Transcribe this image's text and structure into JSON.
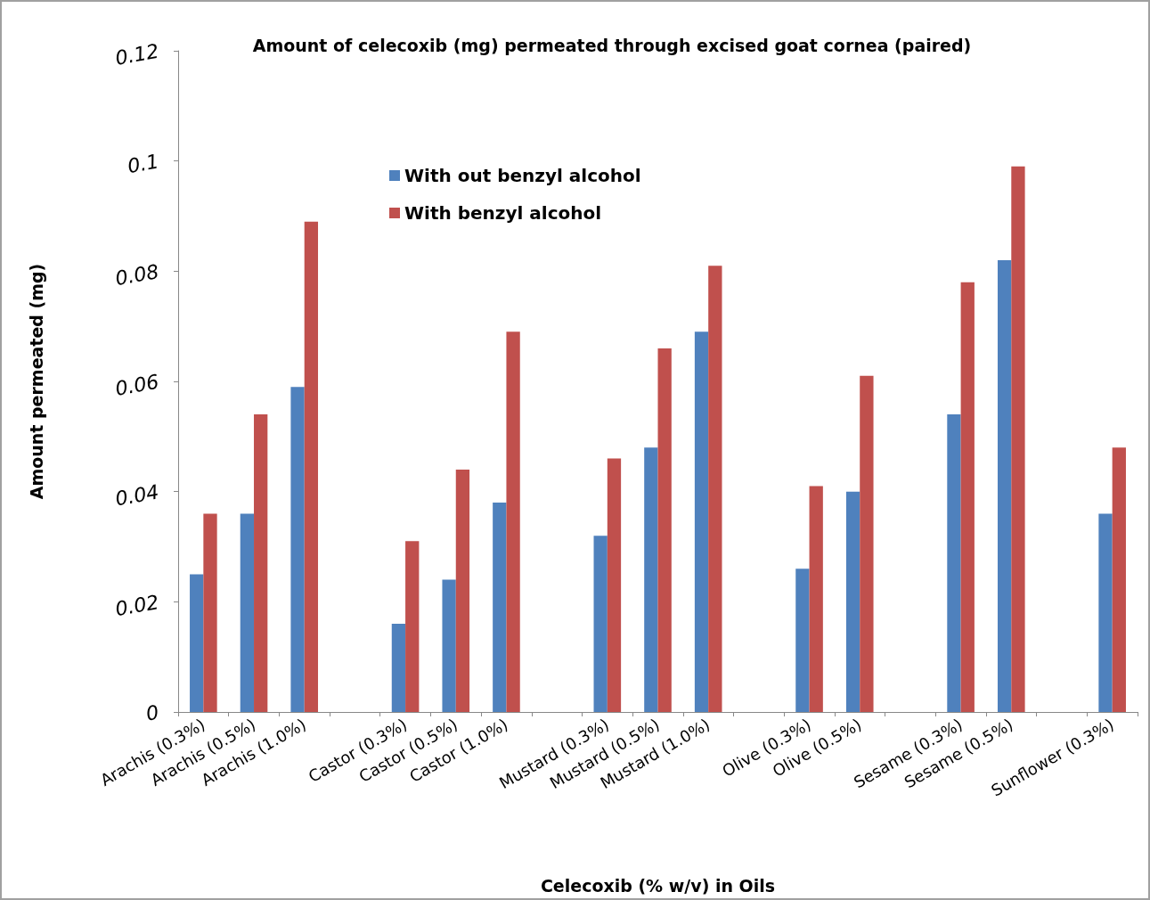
{
  "chart_data": {
    "type": "bar",
    "title": "Amount of celecoxib (mg) permeated through excised goat cornea (paired)",
    "xlabel": "Celecoxib (% w/v) in Oils",
    "ylabel": "Amount permeated (mg)",
    "categories": [
      "Arachis (0.3%)",
      "Arachis (0.5%)",
      "Arachis (1.0%)",
      null,
      "Castor (0.3%)",
      "Castor (0.5%)",
      "Castor (1.0%)",
      null,
      "Mustard (0.3%)",
      "Mustard (0.5%)",
      "Mustard (1.0%)",
      null,
      "Olive (0.3%)",
      "Olive (0.5%)",
      null,
      "Sesame (0.3%)",
      "Sesame (0.5%)",
      null,
      "Sunflower (0.3%)"
    ],
    "series": [
      {
        "name": "With out benzyl alcohol",
        "color": "#4f81bd",
        "values": [
          0.025,
          0.036,
          0.059,
          null,
          0.016,
          0.024,
          0.038,
          null,
          0.032,
          0.048,
          0.069,
          null,
          0.026,
          0.04,
          null,
          0.054,
          0.082,
          null,
          0.036
        ]
      },
      {
        "name": "With benzyl alcohol",
        "color": "#c0504d",
        "values": [
          0.036,
          0.054,
          0.089,
          null,
          0.031,
          0.044,
          0.069,
          null,
          0.046,
          0.066,
          0.081,
          null,
          0.041,
          0.061,
          null,
          0.078,
          0.099,
          null,
          0.048
        ]
      }
    ],
    "ylim": [
      0,
      0.12
    ],
    "yticks": [
      0,
      0.02,
      0.04,
      0.06,
      0.08,
      0.1,
      0.12
    ],
    "grid": false,
    "legend": "top left"
  }
}
